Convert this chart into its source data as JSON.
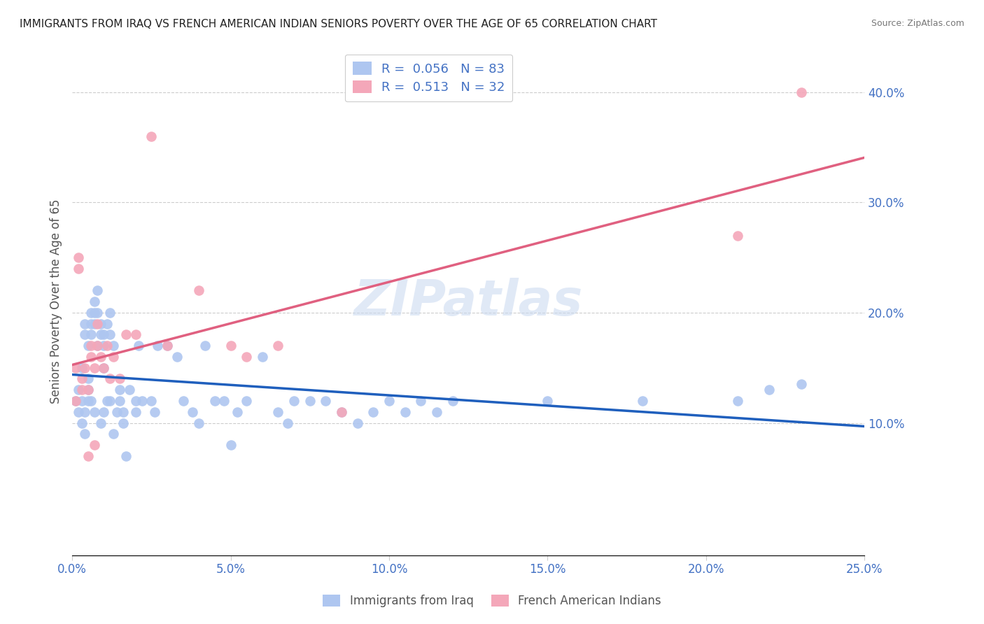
{
  "title": "IMMIGRANTS FROM IRAQ VS FRENCH AMERICAN INDIAN SENIORS POVERTY OVER THE AGE OF 65 CORRELATION CHART",
  "source": "Source: ZipAtlas.com",
  "ylabel": "Seniors Poverty Over the Age of 65",
  "xlim": [
    0,
    0.25
  ],
  "ylim": [
    -0.02,
    0.44
  ],
  "watermark": "ZIPatlas",
  "blue_R": "0.056",
  "blue_N": "83",
  "pink_R": "0.513",
  "pink_N": "32",
  "legend_label_blue": "Immigrants from Iraq",
  "legend_label_pink": "French American Indians",
  "blue_color": "#aec6f0",
  "pink_color": "#f4a7b9",
  "blue_line_color": "#1f5fbd",
  "pink_line_color": "#e06080",
  "title_color": "#222222",
  "axis_label_color": "#4472c4",
  "blue_scatter_x": [
    0.001,
    0.002,
    0.002,
    0.003,
    0.003,
    0.003,
    0.004,
    0.004,
    0.004,
    0.004,
    0.005,
    0.005,
    0.005,
    0.005,
    0.006,
    0.006,
    0.006,
    0.006,
    0.007,
    0.007,
    0.007,
    0.007,
    0.008,
    0.008,
    0.008,
    0.009,
    0.009,
    0.009,
    0.01,
    0.01,
    0.01,
    0.01,
    0.011,
    0.011,
    0.012,
    0.012,
    0.012,
    0.013,
    0.013,
    0.014,
    0.015,
    0.015,
    0.016,
    0.016,
    0.017,
    0.018,
    0.02,
    0.02,
    0.021,
    0.022,
    0.025,
    0.026,
    0.027,
    0.03,
    0.033,
    0.035,
    0.038,
    0.04,
    0.042,
    0.045,
    0.048,
    0.05,
    0.052,
    0.055,
    0.06,
    0.065,
    0.068,
    0.07,
    0.075,
    0.08,
    0.085,
    0.09,
    0.095,
    0.1,
    0.105,
    0.11,
    0.115,
    0.12,
    0.15,
    0.18,
    0.21,
    0.22,
    0.23
  ],
  "blue_scatter_y": [
    0.12,
    0.13,
    0.11,
    0.15,
    0.12,
    0.1,
    0.18,
    0.19,
    0.11,
    0.09,
    0.17,
    0.14,
    0.13,
    0.12,
    0.2,
    0.19,
    0.18,
    0.12,
    0.21,
    0.2,
    0.19,
    0.11,
    0.22,
    0.2,
    0.17,
    0.19,
    0.18,
    0.1,
    0.18,
    0.17,
    0.15,
    0.11,
    0.19,
    0.12,
    0.2,
    0.18,
    0.12,
    0.17,
    0.09,
    0.11,
    0.13,
    0.12,
    0.11,
    0.1,
    0.07,
    0.13,
    0.12,
    0.11,
    0.17,
    0.12,
    0.12,
    0.11,
    0.17,
    0.17,
    0.16,
    0.12,
    0.11,
    0.1,
    0.17,
    0.12,
    0.12,
    0.08,
    0.11,
    0.12,
    0.16,
    0.11,
    0.1,
    0.12,
    0.12,
    0.12,
    0.11,
    0.1,
    0.11,
    0.12,
    0.11,
    0.12,
    0.11,
    0.12,
    0.12,
    0.12,
    0.12,
    0.13,
    0.135
  ],
  "pink_scatter_x": [
    0.001,
    0.001,
    0.002,
    0.002,
    0.003,
    0.003,
    0.004,
    0.005,
    0.005,
    0.006,
    0.006,
    0.007,
    0.007,
    0.008,
    0.008,
    0.009,
    0.01,
    0.011,
    0.012,
    0.013,
    0.015,
    0.017,
    0.02,
    0.025,
    0.03,
    0.04,
    0.05,
    0.055,
    0.065,
    0.085,
    0.21,
    0.23
  ],
  "pink_scatter_y": [
    0.15,
    0.12,
    0.25,
    0.24,
    0.14,
    0.13,
    0.15,
    0.13,
    0.07,
    0.17,
    0.16,
    0.15,
    0.08,
    0.19,
    0.17,
    0.16,
    0.15,
    0.17,
    0.14,
    0.16,
    0.14,
    0.18,
    0.18,
    0.36,
    0.17,
    0.22,
    0.17,
    0.16,
    0.17,
    0.11,
    0.27,
    0.4
  ],
  "x_tick_vals": [
    0.0,
    0.05,
    0.1,
    0.15,
    0.2,
    0.25
  ],
  "x_tick_labels": [
    "0.0%",
    "5.0%",
    "10.0%",
    "15.0%",
    "20.0%",
    "25.0%"
  ],
  "y_tick_vals": [
    0.1,
    0.2,
    0.3,
    0.4
  ],
  "y_tick_labels": [
    "10.0%",
    "20.0%",
    "30.0%",
    "40.0%"
  ]
}
